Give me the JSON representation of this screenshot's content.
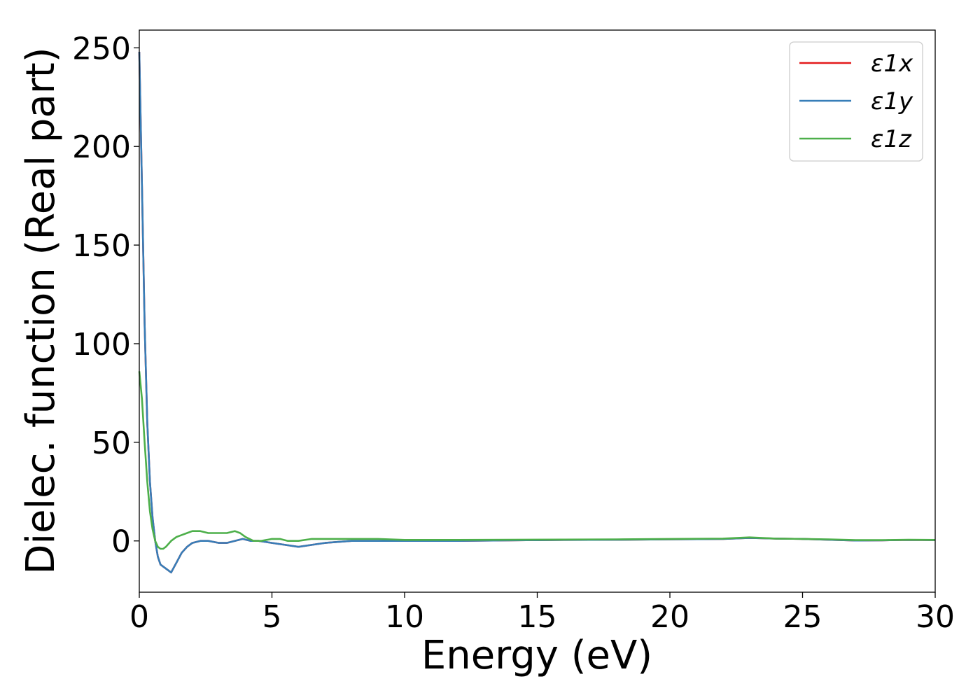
{
  "chart_data": {
    "type": "line",
    "xlabel": "Energy (eV)",
    "ylabel": "Dielec. function (Real part)",
    "xlim": [
      0,
      30
    ],
    "ylim": [
      -26,
      259
    ],
    "xticks": [
      0,
      5,
      10,
      15,
      20,
      25,
      30
    ],
    "xtick_labels": [
      "0",
      "5",
      "10",
      "15",
      "20",
      "25",
      "30"
    ],
    "yticks": [
      0,
      50,
      100,
      150,
      200,
      250
    ],
    "ytick_labels": [
      "0",
      "50",
      "100",
      "150",
      "200",
      "250"
    ],
    "grid": false,
    "legend_position": "top-right",
    "series": [
      {
        "name": "ε1x",
        "color": "#e41a1c",
        "x": [
          0.0,
          0.1,
          0.2,
          0.3,
          0.4,
          0.5,
          0.6,
          0.7,
          0.8,
          1.0,
          1.2,
          1.4,
          1.6,
          1.8,
          2.0,
          2.3,
          2.6,
          3.0,
          3.3,
          3.6,
          3.9,
          4.2,
          4.5,
          5.0,
          5.5,
          6.0,
          6.5,
          7.0,
          8.0,
          9.0,
          10.0,
          11.0,
          12.0,
          14.0,
          16.0,
          18.0,
          20.0,
          22.0,
          23.0,
          24.0,
          25.0,
          26.0,
          27.0,
          28.0,
          29.0,
          30.0
        ],
        "y": [
          248,
          180,
          110,
          60,
          30,
          12,
          0,
          -8,
          -12,
          -14,
          -16,
          -11,
          -6,
          -3,
          -1,
          0,
          0,
          -1,
          -1,
          0,
          1,
          0,
          0,
          -1,
          -2,
          -3,
          -2,
          -1,
          0,
          0,
          0,
          0,
          0,
          0.3,
          0.5,
          0.6,
          0.8,
          1,
          1.5,
          1.2,
          1,
          0.6,
          0.2,
          0.3,
          0.5,
          0.4
        ]
      },
      {
        "name": "ε1y",
        "color": "#377eb8",
        "x": [
          0.0,
          0.1,
          0.2,
          0.3,
          0.4,
          0.5,
          0.6,
          0.7,
          0.8,
          1.0,
          1.2,
          1.4,
          1.6,
          1.8,
          2.0,
          2.3,
          2.6,
          3.0,
          3.3,
          3.6,
          3.9,
          4.2,
          4.5,
          5.0,
          5.5,
          6.0,
          6.5,
          7.0,
          8.0,
          9.0,
          10.0,
          11.0,
          12.0,
          14.0,
          16.0,
          18.0,
          20.0,
          22.0,
          23.0,
          24.0,
          25.0,
          26.0,
          27.0,
          28.0,
          29.0,
          30.0
        ],
        "y": [
          248,
          180,
          110,
          60,
          30,
          12,
          0,
          -8,
          -12,
          -14,
          -16,
          -11,
          -6,
          -3,
          -1,
          0,
          0,
          -1,
          -1,
          0,
          1,
          0,
          0,
          -1,
          -2,
          -3,
          -2,
          -1,
          0,
          0,
          0,
          0,
          0,
          0.3,
          0.5,
          0.6,
          0.8,
          1,
          1.5,
          1.2,
          1,
          0.6,
          0.2,
          0.3,
          0.5,
          0.4
        ]
      },
      {
        "name": "ε1z",
        "color": "#4daf4a",
        "x": [
          0.0,
          0.1,
          0.2,
          0.3,
          0.4,
          0.5,
          0.6,
          0.7,
          0.8,
          0.9,
          1.0,
          1.2,
          1.4,
          1.6,
          1.8,
          2.0,
          2.3,
          2.6,
          3.0,
          3.3,
          3.6,
          3.8,
          4.0,
          4.3,
          4.6,
          5.0,
          5.3,
          5.6,
          6.0,
          6.5,
          7.0,
          8.0,
          9.0,
          10.0,
          11.0,
          12.0,
          14.0,
          16.0,
          18.0,
          20.0,
          22.0,
          23.0,
          24.0,
          25.0,
          26.0,
          27.0,
          28.0,
          29.0,
          30.0
        ],
        "y": [
          86,
          72,
          50,
          30,
          15,
          6,
          0,
          -3,
          -4,
          -4,
          -3,
          0,
          2,
          3,
          4,
          5,
          5,
          4,
          4,
          4,
          5,
          4,
          2,
          0,
          0,
          1,
          1,
          0,
          0,
          1,
          1,
          1,
          1,
          0.5,
          0.5,
          0.5,
          0.6,
          0.7,
          0.8,
          1,
          1.2,
          1.8,
          1.2,
          1,
          0.8,
          0.4,
          0.4,
          0.6,
          0.5
        ]
      }
    ]
  }
}
